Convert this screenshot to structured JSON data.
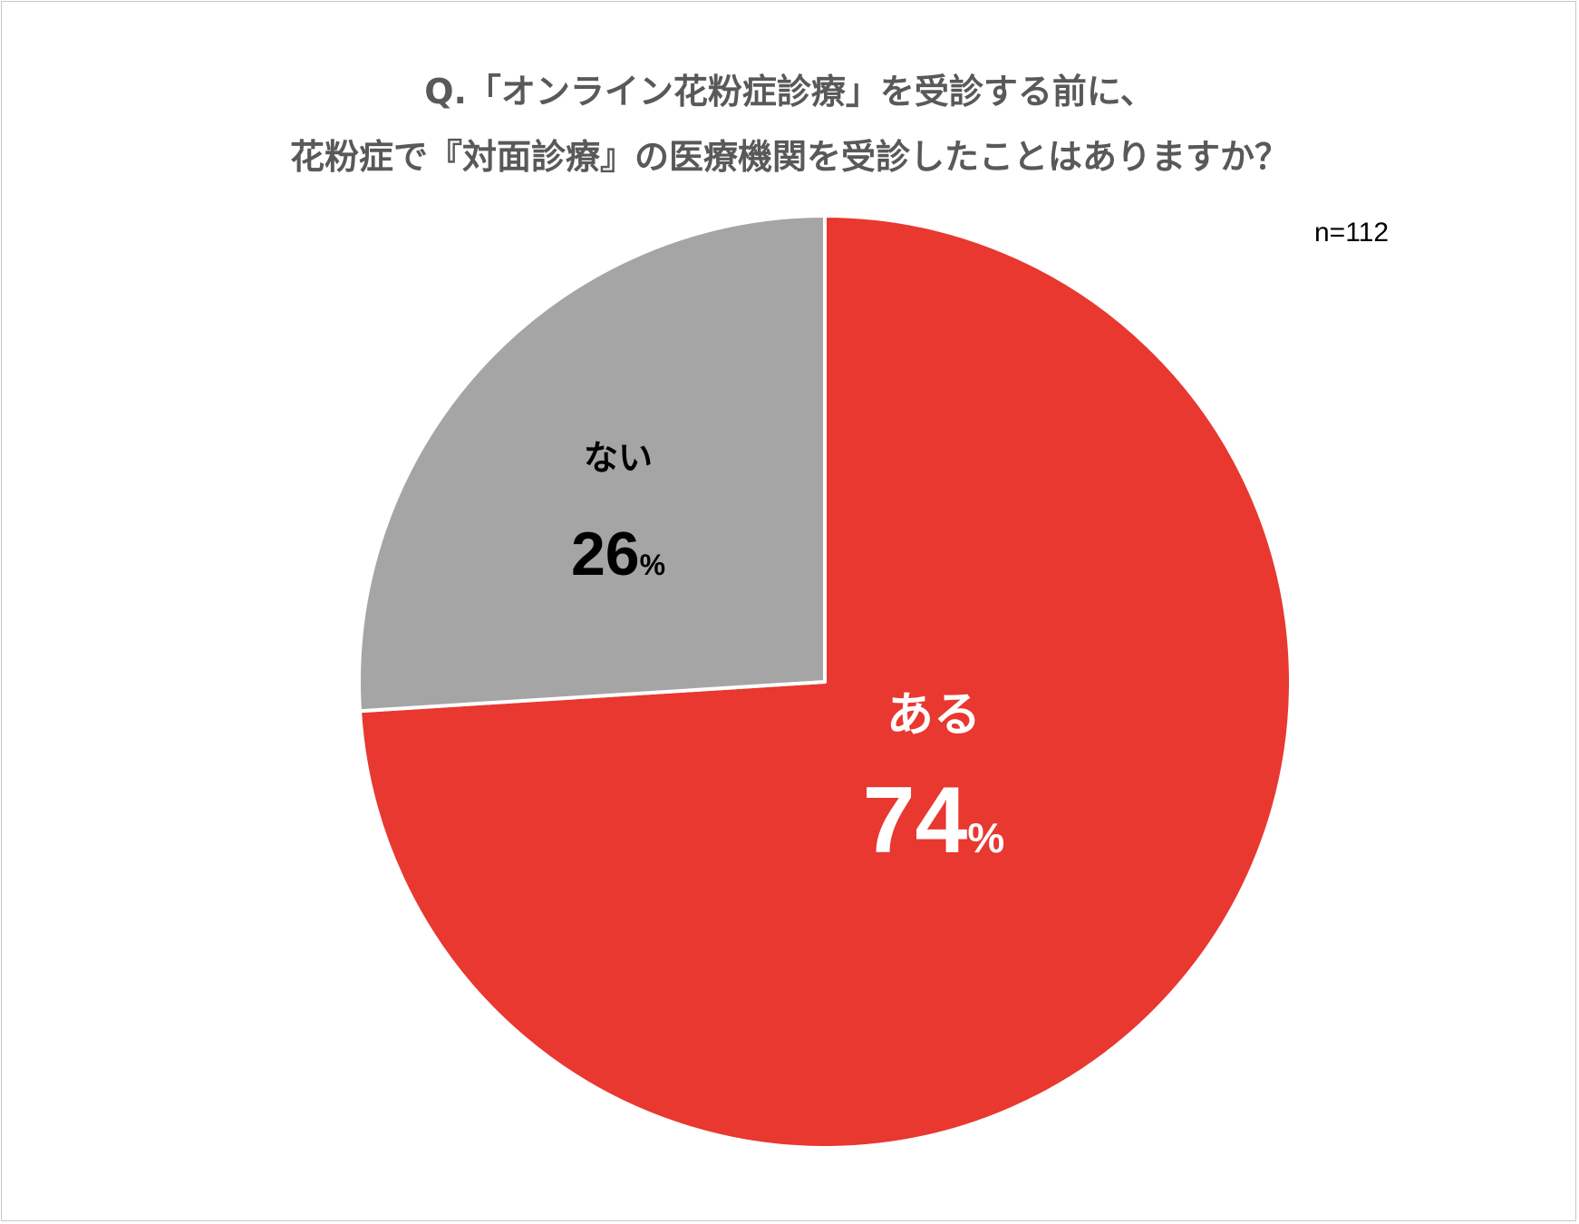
{
  "title_line1": "Q.「オンライン花粉症診療」を受診する前に、",
  "title_line2": "花粉症で『対面診療』の医療機関を受診したことはありますか？",
  "sample_size": "n=112",
  "chart_data": {
    "type": "pie",
    "title": "Q.「オンライン花粉症診療」を受診する前に、花粉症で『対面診療』の医療機関を受診したことはありますか？",
    "start": "12 o'clock, clockwise",
    "slices": [
      {
        "label": "ある",
        "value": 74,
        "display_number": "74",
        "unit": "%",
        "color": "#e83830",
        "text_color": "#ffffff"
      },
      {
        "label": "ない",
        "value": 26,
        "display_number": "26",
        "unit": "%",
        "color": "#a5a5a5",
        "text_color": "#000000"
      }
    ]
  }
}
